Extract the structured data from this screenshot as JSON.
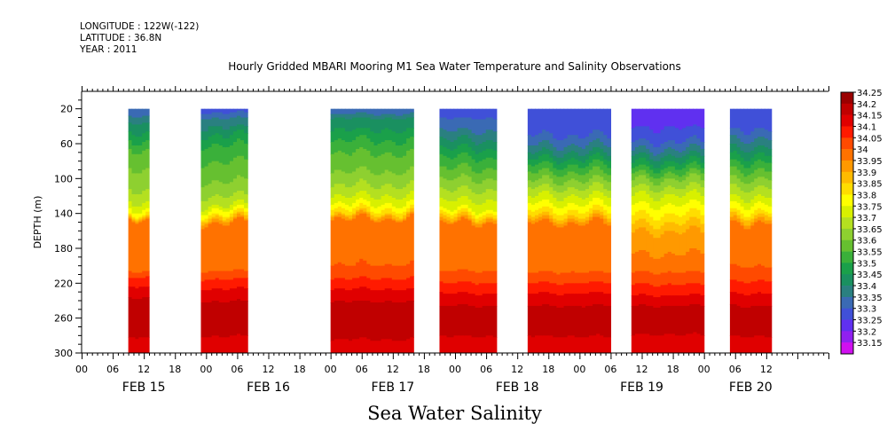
{
  "header": {
    "longitude": "LONGITUDE : 122W(-122)",
    "latitude": "LATITUDE : 36.8N",
    "year": "YEAR : 2011"
  },
  "chart_data": {
    "type": "heatmap",
    "title": "Hourly Gridded MBARI Mooring M1 Sea Water Temperature and Salinity Observations",
    "subtitle": "Sea Water Salinity",
    "ylabel": "DEPTH (m)",
    "xlabel": "",
    "y_range": [
      300,
      0
    ],
    "y_ticks": [
      20,
      60,
      100,
      140,
      180,
      220,
      260,
      300
    ],
    "x_range_hours_from_feb15_00": [
      0,
      144
    ],
    "x_hour_ticks": [
      {
        "h": 0,
        "label": "00"
      },
      {
        "h": 6,
        "label": "06"
      },
      {
        "h": 12,
        "label": "12"
      },
      {
        "h": 18,
        "label": "18"
      },
      {
        "h": 24,
        "label": "00"
      },
      {
        "h": 30,
        "label": "06"
      },
      {
        "h": 36,
        "label": "12"
      },
      {
        "h": 42,
        "label": "18"
      },
      {
        "h": 48,
        "label": "00"
      },
      {
        "h": 54,
        "label": "06"
      },
      {
        "h": 60,
        "label": "12"
      },
      {
        "h": 66,
        "label": "18"
      },
      {
        "h": 72,
        "label": "00"
      },
      {
        "h": 78,
        "label": "06"
      },
      {
        "h": 84,
        "label": "12"
      },
      {
        "h": 90,
        "label": "18"
      },
      {
        "h": 96,
        "label": "00"
      },
      {
        "h": 102,
        "label": "06"
      },
      {
        "h": 108,
        "label": "12"
      },
      {
        "h": 114,
        "label": "18"
      },
      {
        "h": 120,
        "label": "00"
      },
      {
        "h": 126,
        "label": "06"
      },
      {
        "h": 132,
        "label": "12"
      }
    ],
    "x_day_labels": [
      {
        "h": 12,
        "label": "FEB 15"
      },
      {
        "h": 36,
        "label": "FEB 16"
      },
      {
        "h": 60,
        "label": "FEB 17"
      },
      {
        "h": 84,
        "label": "FEB 18"
      },
      {
        "h": 108,
        "label": "FEB 19"
      },
      {
        "h": 129,
        "label": "FEB 20"
      }
    ],
    "legend_levels": [
      {
        "value": "34.25",
        "color": "#9a0000"
      },
      {
        "value": "34.2",
        "color": "#c00000"
      },
      {
        "value": "34.15",
        "color": "#e00000"
      },
      {
        "value": "34.1",
        "color": "#ff1a00"
      },
      {
        "value": "34.05",
        "color": "#ff4a00"
      },
      {
        "value": "34",
        "color": "#ff7200"
      },
      {
        "value": "33.95",
        "color": "#ff9900"
      },
      {
        "value": "33.9",
        "color": "#ffbb00"
      },
      {
        "value": "33.85",
        "color": "#ffdd00"
      },
      {
        "value": "33.8",
        "color": "#ffff00"
      },
      {
        "value": "33.75",
        "color": "#d8f000"
      },
      {
        "value": "33.7",
        "color": "#b4e020"
      },
      {
        "value": "33.65",
        "color": "#8ed030"
      },
      {
        "value": "33.6",
        "color": "#66c030"
      },
      {
        "value": "33.55",
        "color": "#3ab03a"
      },
      {
        "value": "33.5",
        "color": "#1aa04a"
      },
      {
        "value": "33.45",
        "color": "#1a9060"
      },
      {
        "value": "33.4",
        "color": "#2a8080"
      },
      {
        "value": "33.35",
        "color": "#3a6ab4"
      },
      {
        "value": "33.3",
        "color": "#4050d8"
      },
      {
        "value": "33.25",
        "color": "#6030f0"
      },
      {
        "value": "33.2",
        "color": "#9020f0"
      },
      {
        "value": "33.15",
        "color": "#d010f0"
      }
    ],
    "data_segments": [
      {
        "start_h": 9,
        "end_h": 13,
        "profile": [
          [
            20,
            33.35
          ],
          [
            35,
            33.45
          ],
          [
            50,
            33.52
          ],
          [
            70,
            33.62
          ],
          [
            100,
            33.67
          ],
          [
            120,
            33.72
          ],
          [
            132,
            33.78
          ],
          [
            140,
            33.86
          ],
          [
            146,
            34.02
          ],
          [
            170,
            34.03
          ],
          [
            205,
            34.05
          ],
          [
            215,
            34.12
          ],
          [
            235,
            34.2
          ],
          [
            255,
            34.21
          ],
          [
            278,
            34.21
          ],
          [
            290,
            34.16
          ],
          [
            300,
            34.16
          ]
        ]
      },
      {
        "start_h": 23,
        "end_h": 32,
        "profile": [
          [
            20,
            33.32
          ],
          [
            30,
            33.4
          ],
          [
            45,
            33.48
          ],
          [
            65,
            33.57
          ],
          [
            90,
            33.62
          ],
          [
            115,
            33.68
          ],
          [
            130,
            33.75
          ],
          [
            140,
            33.85
          ],
          [
            150,
            34.0
          ],
          [
            175,
            34.02
          ],
          [
            205,
            34.05
          ],
          [
            220,
            34.13
          ],
          [
            240,
            34.2
          ],
          [
            260,
            34.22
          ],
          [
            280,
            34.2
          ],
          [
            300,
            34.15
          ]
        ]
      },
      {
        "start_h": 48,
        "end_h": 64,
        "profile": [
          [
            20,
            33.35
          ],
          [
            30,
            33.45
          ],
          [
            50,
            33.53
          ],
          [
            70,
            33.6
          ],
          [
            95,
            33.66
          ],
          [
            115,
            33.73
          ],
          [
            128,
            33.8
          ],
          [
            138,
            33.88
          ],
          [
            146,
            34.02
          ],
          [
            185,
            34.03
          ],
          [
            205,
            34.06
          ],
          [
            220,
            34.13
          ],
          [
            240,
            34.2
          ],
          [
            258,
            34.22
          ],
          [
            278,
            34.21
          ],
          [
            300,
            34.17
          ]
        ]
      },
      {
        "start_h": 69,
        "end_h": 80,
        "profile": [
          [
            20,
            33.32
          ],
          [
            40,
            33.38
          ],
          [
            55,
            33.45
          ],
          [
            75,
            33.55
          ],
          [
            100,
            33.65
          ],
          [
            120,
            33.73
          ],
          [
            135,
            33.8
          ],
          [
            143,
            33.9
          ],
          [
            150,
            34.0
          ],
          [
            190,
            34.02
          ],
          [
            210,
            34.06
          ],
          [
            225,
            34.13
          ],
          [
            245,
            34.2
          ],
          [
            262,
            34.22
          ],
          [
            280,
            34.2
          ],
          [
            300,
            34.15
          ]
        ]
      },
      {
        "start_h": 86,
        "end_h": 102,
        "profile": [
          [
            20,
            33.3
          ],
          [
            45,
            33.33
          ],
          [
            65,
            33.42
          ],
          [
            85,
            33.56
          ],
          [
            110,
            33.7
          ],
          [
            128,
            33.8
          ],
          [
            140,
            33.88
          ],
          [
            150,
            34.0
          ],
          [
            195,
            34.02
          ],
          [
            210,
            34.06
          ],
          [
            225,
            34.13
          ],
          [
            245,
            34.2
          ],
          [
            262,
            34.22
          ],
          [
            280,
            34.2
          ],
          [
            300,
            34.15
          ]
        ]
      },
      {
        "start_h": 106,
        "end_h": 120,
        "profile": [
          [
            20,
            33.26
          ],
          [
            40,
            33.3
          ],
          [
            60,
            33.36
          ],
          [
            80,
            33.5
          ],
          [
            100,
            33.65
          ],
          [
            120,
            33.76
          ],
          [
            140,
            33.85
          ],
          [
            160,
            33.95
          ],
          [
            195,
            34.02
          ],
          [
            210,
            34.06
          ],
          [
            228,
            34.13
          ],
          [
            245,
            34.2
          ],
          [
            262,
            34.22
          ],
          [
            278,
            34.2
          ],
          [
            300,
            34.15
          ]
        ]
      },
      {
        "start_h": 125,
        "end_h": 133,
        "profile": [
          [
            20,
            33.3
          ],
          [
            40,
            33.34
          ],
          [
            60,
            33.43
          ],
          [
            80,
            33.55
          ],
          [
            105,
            33.68
          ],
          [
            122,
            33.76
          ],
          [
            138,
            33.86
          ],
          [
            150,
            34.0
          ],
          [
            190,
            34.03
          ],
          [
            205,
            34.06
          ],
          [
            225,
            34.13
          ],
          [
            245,
            34.2
          ],
          [
            262,
            34.22
          ],
          [
            280,
            34.2
          ],
          [
            300,
            34.15
          ]
        ]
      }
    ]
  }
}
